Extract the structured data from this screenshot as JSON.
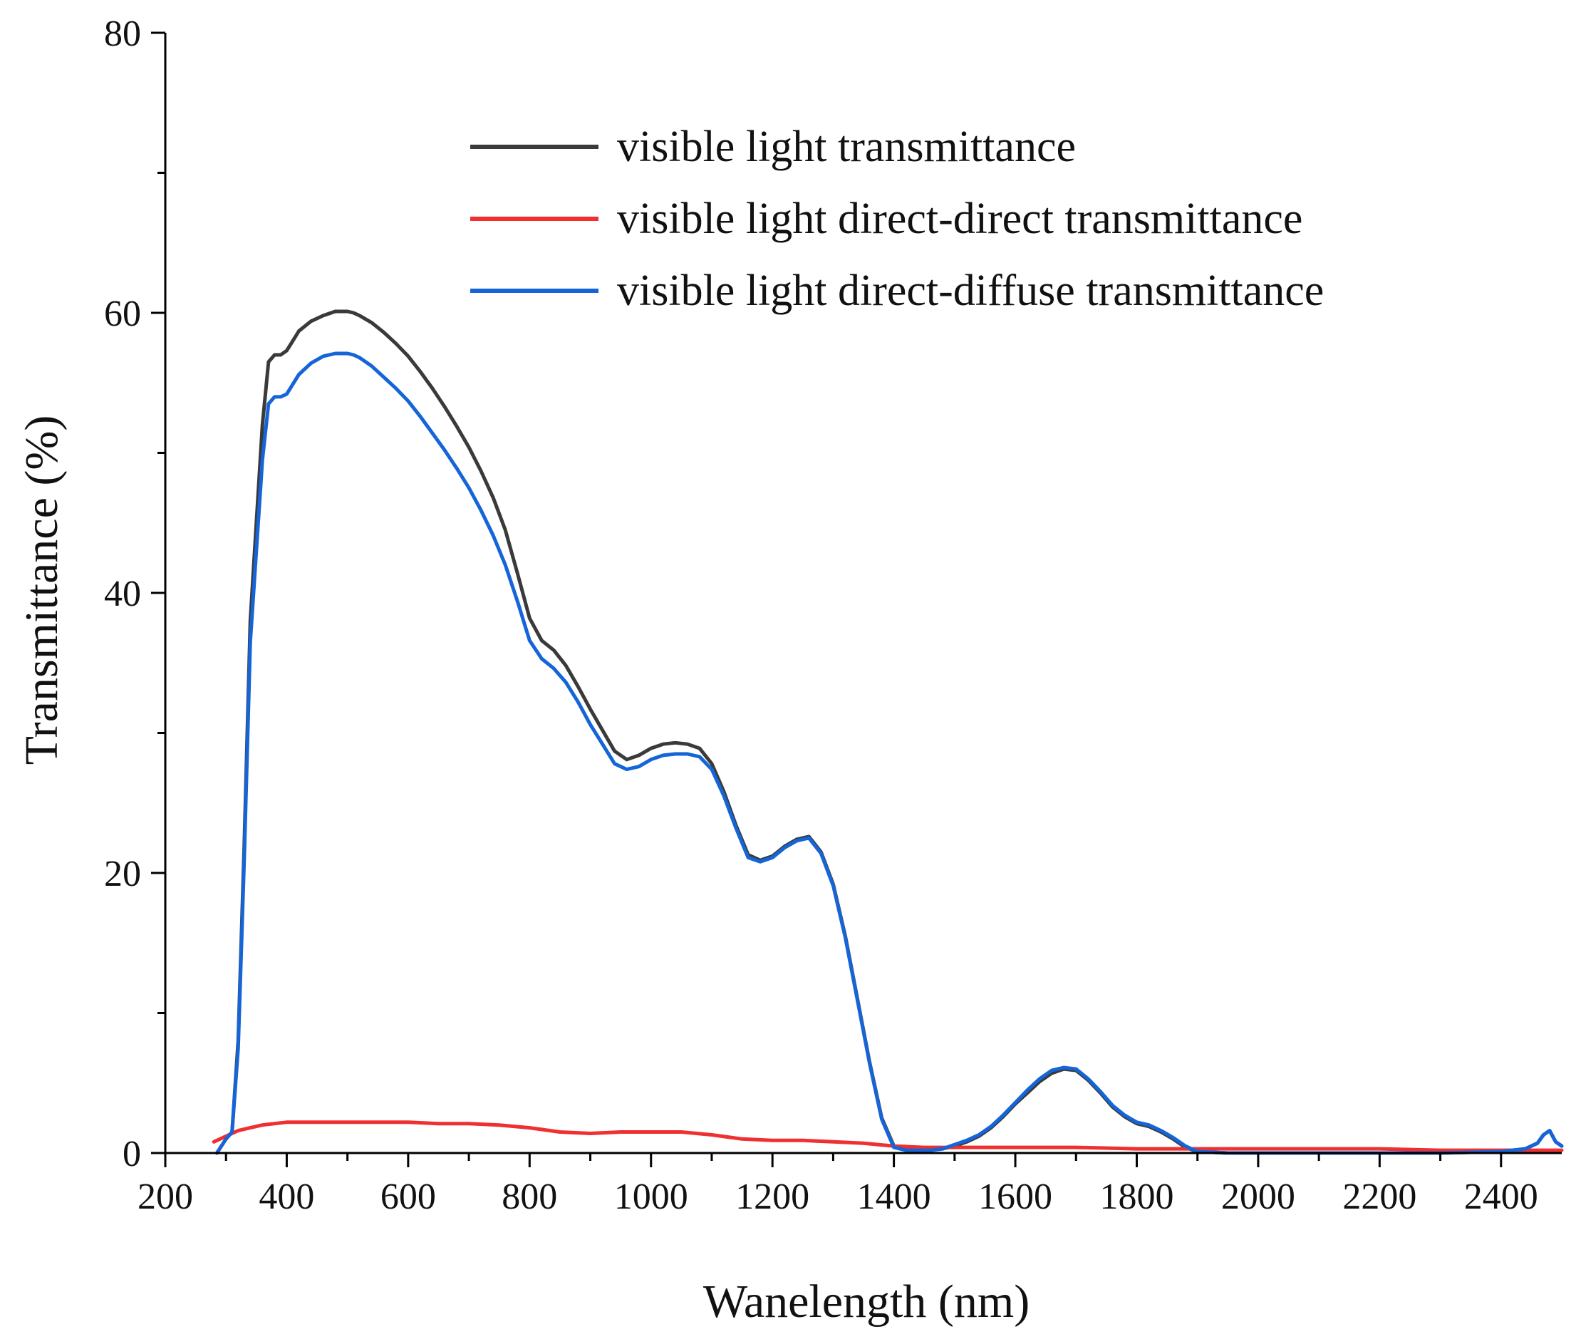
{
  "chart_data": {
    "type": "line",
    "title": "",
    "xlabel": "Wanelength (nm)",
    "ylabel": "Transmittance (%)",
    "xlim": [
      200,
      2500
    ],
    "ylim": [
      0,
      80
    ],
    "xticks": [
      200,
      400,
      600,
      800,
      1000,
      1200,
      1400,
      1600,
      1800,
      2000,
      2200,
      2400
    ],
    "yticks": [
      0,
      20,
      40,
      60,
      80
    ],
    "grid": false,
    "legend_position": "top-right",
    "series": [
      {
        "name": "visible light transmittance",
        "color": "#3a3a3a",
        "x": [
          285,
          300,
          310,
          320,
          330,
          340,
          350,
          360,
          370,
          380,
          390,
          400,
          410,
          420,
          440,
          460,
          480,
          500,
          510,
          520,
          540,
          560,
          580,
          600,
          620,
          640,
          660,
          680,
          700,
          720,
          740,
          760,
          780,
          800,
          820,
          840,
          860,
          880,
          900,
          920,
          940,
          960,
          980,
          1000,
          1020,
          1040,
          1060,
          1080,
          1100,
          1120,
          1140,
          1160,
          1180,
          1200,
          1220,
          1240,
          1260,
          1280,
          1300,
          1320,
          1340,
          1360,
          1380,
          1400,
          1420,
          1440,
          1460,
          1480,
          1500,
          1520,
          1540,
          1560,
          1580,
          1600,
          1620,
          1640,
          1660,
          1680,
          1700,
          1720,
          1740,
          1760,
          1780,
          1800,
          1820,
          1840,
          1860,
          1880,
          1900,
          1950,
          2000,
          2100,
          2200,
          2300,
          2400,
          2440,
          2460,
          2470,
          2480,
          2490,
          2500
        ],
        "values": [
          0,
          1,
          1.5,
          8,
          22,
          38,
          45,
          52,
          56.5,
          57,
          57,
          57.3,
          58,
          58.7,
          59.4,
          59.8,
          60.1,
          60.1,
          60,
          59.8,
          59.3,
          58.6,
          57.8,
          56.9,
          55.8,
          54.6,
          53.3,
          51.9,
          50.4,
          48.7,
          46.8,
          44.5,
          41.4,
          38.2,
          36.6,
          35.9,
          34.8,
          33.3,
          31.7,
          30.2,
          28.7,
          28.1,
          28.4,
          28.9,
          29.2,
          29.3,
          29.2,
          28.9,
          27.8,
          25.8,
          23.4,
          21.3,
          20.9,
          21.2,
          21.9,
          22.4,
          22.6,
          21.5,
          19.2,
          15.5,
          11,
          6.5,
          2.5,
          0.5,
          0.2,
          0.2,
          0.2,
          0.3,
          0.5,
          0.8,
          1.2,
          1.8,
          2.6,
          3.5,
          4.3,
          5.1,
          5.7,
          6,
          5.9,
          5.2,
          4.3,
          3.3,
          2.6,
          2.1,
          1.9,
          1.5,
          1,
          0.4,
          0.1,
          0,
          0,
          0,
          0,
          0,
          0.1,
          0.3,
          0.7,
          1.3,
          1.6,
          0.8,
          0.5
        ]
      },
      {
        "name": "visible light direct-direct transmittance",
        "color": "#f03030",
        "x": [
          280,
          300,
          320,
          340,
          360,
          380,
          400,
          450,
          500,
          550,
          600,
          650,
          700,
          750,
          800,
          850,
          900,
          950,
          1000,
          1050,
          1100,
          1150,
          1200,
          1250,
          1300,
          1350,
          1400,
          1450,
          1500,
          1600,
          1700,
          1800,
          1900,
          2000,
          2100,
          2200,
          2300,
          2400,
          2500
        ],
        "values": [
          0.8,
          1.2,
          1.6,
          1.8,
          2,
          2.1,
          2.2,
          2.2,
          2.2,
          2.2,
          2.2,
          2.1,
          2.1,
          2,
          1.8,
          1.5,
          1.4,
          1.5,
          1.5,
          1.5,
          1.3,
          1,
          0.9,
          0.9,
          0.8,
          0.7,
          0.5,
          0.4,
          0.4,
          0.4,
          0.4,
          0.3,
          0.3,
          0.3,
          0.3,
          0.3,
          0.2,
          0.2,
          0.2
        ]
      },
      {
        "name": "visible light direct-diffuse transmittance",
        "color": "#1565d8",
        "x": [
          285,
          300,
          310,
          320,
          330,
          340,
          350,
          360,
          370,
          380,
          390,
          400,
          410,
          420,
          440,
          460,
          480,
          500,
          510,
          520,
          540,
          560,
          580,
          600,
          620,
          640,
          660,
          680,
          700,
          720,
          740,
          760,
          780,
          800,
          820,
          840,
          860,
          880,
          900,
          920,
          940,
          960,
          980,
          1000,
          1020,
          1040,
          1060,
          1080,
          1100,
          1120,
          1140,
          1160,
          1180,
          1200,
          1220,
          1240,
          1260,
          1280,
          1300,
          1320,
          1340,
          1360,
          1380,
          1400,
          1420,
          1440,
          1460,
          1480,
          1500,
          1520,
          1540,
          1560,
          1580,
          1600,
          1620,
          1640,
          1660,
          1680,
          1700,
          1720,
          1740,
          1760,
          1780,
          1800,
          1820,
          1840,
          1860,
          1880,
          1900,
          1950,
          2000,
          2100,
          2200,
          2300,
          2400,
          2440,
          2460,
          2470,
          2480,
          2490,
          2500
        ],
        "values": [
          0,
          1,
          1.5,
          7.5,
          21,
          36.5,
          43,
          49.5,
          53.5,
          54,
          54,
          54.2,
          54.9,
          55.6,
          56.4,
          56.9,
          57.1,
          57.1,
          57,
          56.8,
          56.2,
          55.4,
          54.6,
          53.7,
          52.6,
          51.4,
          50.2,
          48.9,
          47.5,
          45.9,
          44.1,
          42,
          39.4,
          36.6,
          35.3,
          34.6,
          33.6,
          32.2,
          30.6,
          29.2,
          27.8,
          27.4,
          27.6,
          28.1,
          28.4,
          28.5,
          28.5,
          28.3,
          27.4,
          25.5,
          23.2,
          21.1,
          20.8,
          21.1,
          21.8,
          22.3,
          22.5,
          21.4,
          19.1,
          15.4,
          10.9,
          6.4,
          2.4,
          0.4,
          0.2,
          0.2,
          0.2,
          0.3,
          0.6,
          0.9,
          1.3,
          1.9,
          2.7,
          3.6,
          4.5,
          5.3,
          5.9,
          6.1,
          6,
          5.3,
          4.4,
          3.4,
          2.7,
          2.2,
          2,
          1.6,
          1.1,
          0.5,
          0.1,
          0,
          0,
          0,
          0,
          0,
          0.1,
          0.3,
          0.7,
          1.3,
          1.6,
          0.8,
          0.5
        ]
      }
    ]
  }
}
